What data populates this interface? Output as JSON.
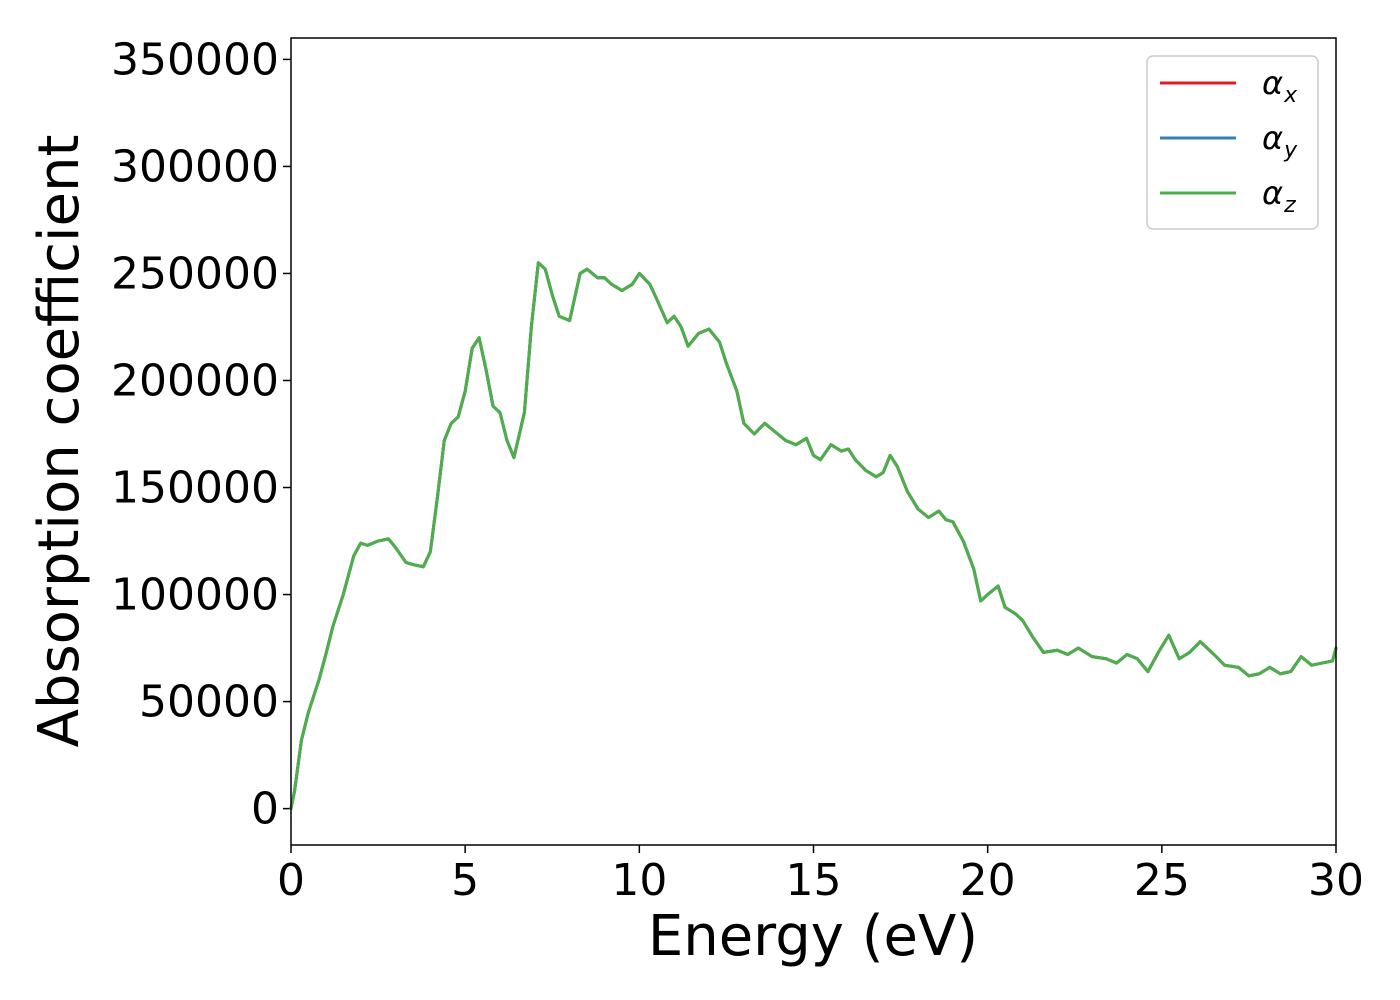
{
  "chart_data": {
    "type": "line",
    "title": "",
    "xlabel": "Energy (eV)",
    "ylabel": "Absorption coefficient",
    "xlim": [
      0,
      30
    ],
    "ylim": [
      -17000,
      360000
    ],
    "xticks": [
      "0",
      "5",
      "10",
      "15",
      "20",
      "25",
      "30"
    ],
    "yticks": [
      "0",
      "50000",
      "100000",
      "150000",
      "200000",
      "250000",
      "300000",
      "350000"
    ],
    "grid": false,
    "legend_position": "top-right",
    "colors": {
      "alpha_x": "#e41a1c",
      "alpha_y": "#377eb8",
      "alpha_z": "#4daf4a"
    },
    "series": [
      {
        "name": "αx",
        "legend_symbol": "α",
        "legend_sub": "x",
        "color": "#e41a1c"
      },
      {
        "name": "αy",
        "legend_symbol": "α",
        "legend_sub": "y",
        "color": "#377eb8"
      },
      {
        "name": "αz",
        "legend_symbol": "α",
        "legend_sub": "z",
        "color": "#4daf4a"
      }
    ],
    "x": [
      0,
      0.1,
      0.2,
      0.3,
      0.5,
      0.8,
      1.0,
      1.2,
      1.5,
      1.8,
      2.0,
      2.2,
      2.5,
      2.8,
      3.0,
      3.3,
      3.5,
      3.8,
      4.0,
      4.2,
      4.4,
      4.6,
      4.8,
      5.0,
      5.2,
      5.4,
      5.6,
      5.8,
      6.0,
      6.2,
      6.4,
      6.7,
      6.9,
      7.1,
      7.3,
      7.5,
      7.7,
      8.0,
      8.3,
      8.5,
      8.8,
      9.0,
      9.2,
      9.5,
      9.8,
      10.0,
      10.3,
      10.5,
      10.8,
      11.0,
      11.2,
      11.4,
      11.7,
      12.0,
      12.3,
      12.5,
      12.8,
      13.0,
      13.3,
      13.6,
      13.9,
      14.2,
      14.5,
      14.8,
      15.0,
      15.2,
      15.5,
      15.8,
      16.0,
      16.2,
      16.5,
      16.8,
      17.0,
      17.2,
      17.4,
      17.7,
      18.0,
      18.3,
      18.6,
      18.8,
      19.0,
      19.3,
      19.6,
      19.8,
      20.0,
      20.3,
      20.5,
      20.8,
      21.0,
      21.3,
      21.6,
      22.0,
      22.3,
      22.6,
      23.0,
      23.4,
      23.7,
      24.0,
      24.3,
      24.6,
      24.9,
      25.2,
      25.5,
      25.8,
      26.1,
      26.5,
      26.8,
      27.2,
      27.5,
      27.8,
      28.1,
      28.4,
      28.7,
      29.0,
      29.3,
      29.6,
      29.9,
      30.0
    ],
    "y": [
      0,
      8000,
      20000,
      32000,
      45000,
      60000,
      72000,
      85000,
      100000,
      118000,
      124000,
      123000,
      125000,
      126000,
      122000,
      115000,
      114000,
      113000,
      120000,
      145000,
      172000,
      180000,
      183000,
      195000,
      215000,
      220000,
      205000,
      188000,
      185000,
      172000,
      164000,
      185000,
      225000,
      255000,
      252000,
      240000,
      230000,
      228000,
      250000,
      252000,
      248000,
      248000,
      245000,
      242000,
      245000,
      250000,
      245000,
      238000,
      227000,
      230000,
      225000,
      216000,
      222000,
      224000,
      218000,
      208000,
      195000,
      180000,
      175000,
      180000,
      176000,
      172000,
      170000,
      173000,
      165000,
      163000,
      170000,
      167000,
      168000,
      163000,
      158000,
      155000,
      157000,
      165000,
      160000,
      148000,
      140000,
      136000,
      139000,
      135000,
      134000,
      125000,
      112000,
      97000,
      100000,
      104000,
      94000,
      91000,
      88000,
      80000,
      73000,
      74000,
      72000,
      75000,
      71000,
      70000,
      68000,
      72000,
      70000,
      64000,
      73000,
      81000,
      70000,
      73000,
      78000,
      72000,
      67000,
      66000,
      62000,
      63000,
      66000,
      63000,
      64000,
      71000,
      67000,
      68000,
      69000,
      75000
    ]
  }
}
